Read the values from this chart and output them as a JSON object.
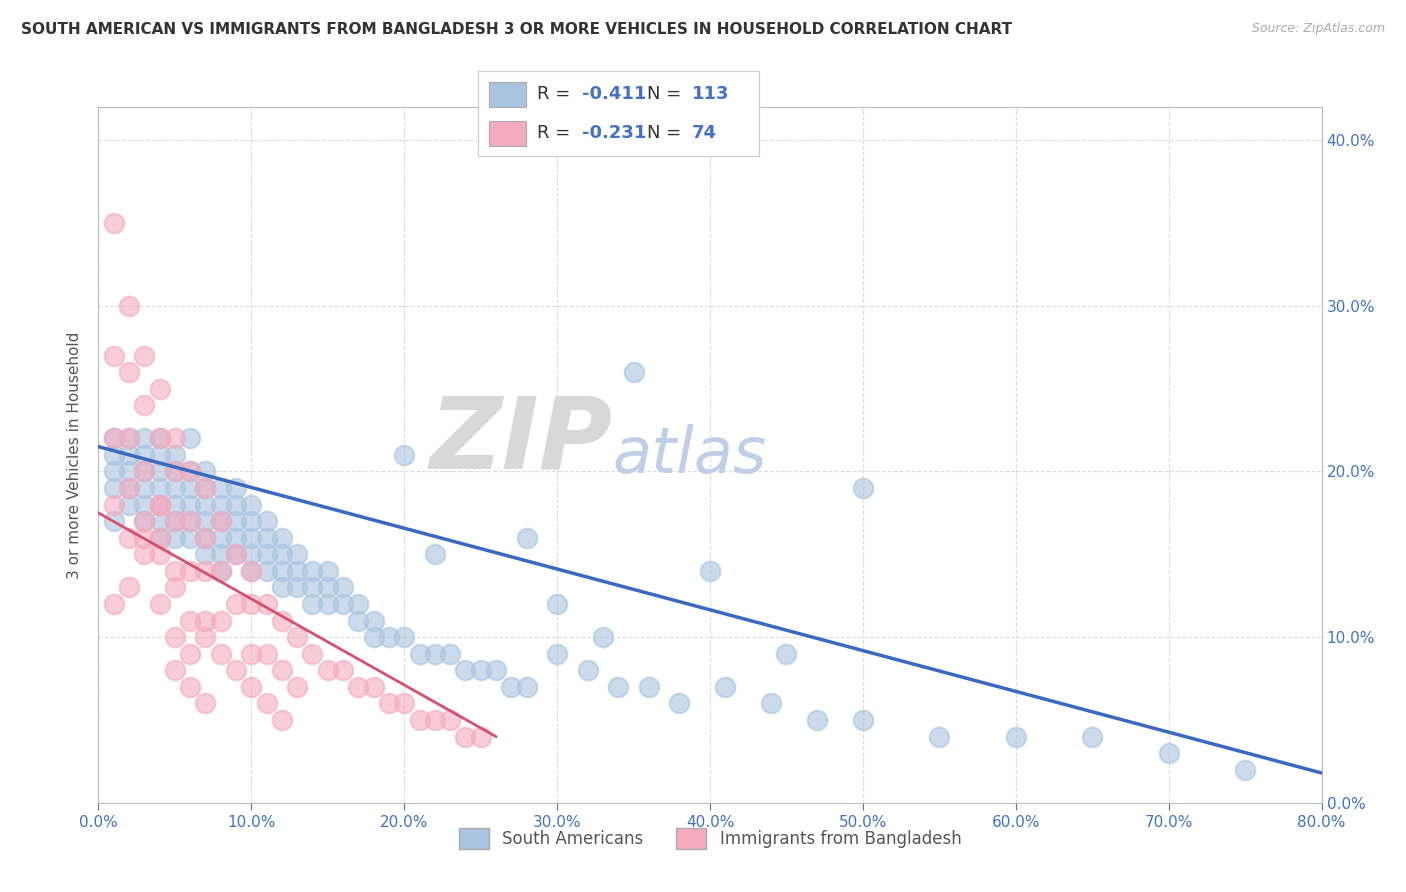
{
  "title": "SOUTH AMERICAN VS IMMIGRANTS FROM BANGLADESH 3 OR MORE VEHICLES IN HOUSEHOLD CORRELATION CHART",
  "source": "Source: ZipAtlas.com",
  "ylabel": "3 or more Vehicles in Household",
  "blue_R": -0.411,
  "blue_N": 113,
  "pink_R": -0.231,
  "pink_N": 74,
  "blue_color": "#aac4e0",
  "blue_line_color": "#3a6abf",
  "pink_color": "#f4abbe",
  "pink_line_color": "#d45070",
  "legend_label_blue": "South Americans",
  "legend_label_pink": "Immigrants from Bangladesh",
  "watermark_zip": "ZIP",
  "watermark_atlas": "atlas",
  "title_fontsize": 11,
  "source_fontsize": 9,
  "blue_scatter_x": [
    0.01,
    0.01,
    0.01,
    0.01,
    0.01,
    0.02,
    0.02,
    0.02,
    0.02,
    0.02,
    0.03,
    0.03,
    0.03,
    0.03,
    0.03,
    0.03,
    0.04,
    0.04,
    0.04,
    0.04,
    0.04,
    0.04,
    0.04,
    0.05,
    0.05,
    0.05,
    0.05,
    0.05,
    0.05,
    0.06,
    0.06,
    0.06,
    0.06,
    0.06,
    0.06,
    0.07,
    0.07,
    0.07,
    0.07,
    0.07,
    0.07,
    0.08,
    0.08,
    0.08,
    0.08,
    0.08,
    0.08,
    0.09,
    0.09,
    0.09,
    0.09,
    0.09,
    0.1,
    0.1,
    0.1,
    0.1,
    0.1,
    0.11,
    0.11,
    0.11,
    0.11,
    0.12,
    0.12,
    0.12,
    0.12,
    0.13,
    0.13,
    0.13,
    0.14,
    0.14,
    0.14,
    0.15,
    0.15,
    0.15,
    0.16,
    0.16,
    0.17,
    0.17,
    0.18,
    0.18,
    0.19,
    0.2,
    0.21,
    0.22,
    0.23,
    0.24,
    0.25,
    0.26,
    0.27,
    0.28,
    0.3,
    0.32,
    0.34,
    0.36,
    0.38,
    0.41,
    0.44,
    0.47,
    0.5,
    0.55,
    0.6,
    0.65,
    0.7,
    0.75,
    0.5,
    0.3,
    0.2,
    0.4,
    0.35,
    0.28,
    0.45,
    0.33,
    0.22
  ],
  "blue_scatter_y": [
    0.22,
    0.2,
    0.19,
    0.17,
    0.21,
    0.21,
    0.2,
    0.19,
    0.22,
    0.18,
    0.21,
    0.22,
    0.2,
    0.19,
    0.18,
    0.17,
    0.21,
    0.2,
    0.19,
    0.18,
    0.17,
    0.22,
    0.16,
    0.21,
    0.2,
    0.19,
    0.18,
    0.17,
    0.16,
    0.2,
    0.19,
    0.18,
    0.17,
    0.16,
    0.22,
    0.2,
    0.19,
    0.18,
    0.17,
    0.16,
    0.15,
    0.19,
    0.18,
    0.17,
    0.16,
    0.15,
    0.14,
    0.19,
    0.18,
    0.17,
    0.16,
    0.15,
    0.18,
    0.17,
    0.16,
    0.15,
    0.14,
    0.17,
    0.16,
    0.15,
    0.14,
    0.16,
    0.15,
    0.14,
    0.13,
    0.15,
    0.14,
    0.13,
    0.14,
    0.13,
    0.12,
    0.14,
    0.13,
    0.12,
    0.13,
    0.12,
    0.12,
    0.11,
    0.11,
    0.1,
    0.1,
    0.1,
    0.09,
    0.09,
    0.09,
    0.08,
    0.08,
    0.08,
    0.07,
    0.07,
    0.09,
    0.08,
    0.07,
    0.07,
    0.06,
    0.07,
    0.06,
    0.05,
    0.05,
    0.04,
    0.04,
    0.04,
    0.03,
    0.02,
    0.19,
    0.12,
    0.21,
    0.14,
    0.26,
    0.16,
    0.09,
    0.1,
    0.15
  ],
  "pink_scatter_x": [
    0.01,
    0.01,
    0.01,
    0.01,
    0.02,
    0.02,
    0.02,
    0.02,
    0.02,
    0.03,
    0.03,
    0.03,
    0.03,
    0.03,
    0.04,
    0.04,
    0.04,
    0.04,
    0.04,
    0.05,
    0.05,
    0.05,
    0.05,
    0.06,
    0.06,
    0.06,
    0.07,
    0.07,
    0.07,
    0.07,
    0.08,
    0.08,
    0.08,
    0.09,
    0.09,
    0.1,
    0.1,
    0.1,
    0.11,
    0.11,
    0.12,
    0.12,
    0.13,
    0.13,
    0.14,
    0.15,
    0.16,
    0.17,
    0.18,
    0.19,
    0.2,
    0.21,
    0.22,
    0.23,
    0.24,
    0.25,
    0.01,
    0.02,
    0.03,
    0.04,
    0.05,
    0.05,
    0.06,
    0.07,
    0.06,
    0.07,
    0.08,
    0.09,
    0.1,
    0.11,
    0.12,
    0.04,
    0.05,
    0.06
  ],
  "pink_scatter_y": [
    0.35,
    0.27,
    0.22,
    0.18,
    0.3,
    0.26,
    0.22,
    0.19,
    0.16,
    0.27,
    0.24,
    0.2,
    0.17,
    0.15,
    0.25,
    0.22,
    0.18,
    0.15,
    0.12,
    0.22,
    0.2,
    0.17,
    0.14,
    0.2,
    0.17,
    0.14,
    0.19,
    0.16,
    0.14,
    0.11,
    0.17,
    0.14,
    0.11,
    0.15,
    0.12,
    0.14,
    0.12,
    0.09,
    0.12,
    0.09,
    0.11,
    0.08,
    0.1,
    0.07,
    0.09,
    0.08,
    0.08,
    0.07,
    0.07,
    0.06,
    0.06,
    0.05,
    0.05,
    0.05,
    0.04,
    0.04,
    0.12,
    0.13,
    0.16,
    0.16,
    0.1,
    0.08,
    0.11,
    0.1,
    0.07,
    0.06,
    0.09,
    0.08,
    0.07,
    0.06,
    0.05,
    0.18,
    0.13,
    0.09
  ],
  "blue_line_x0": 0.0,
  "blue_line_x1": 0.8,
  "blue_line_y0": 0.215,
  "blue_line_y1": 0.018,
  "pink_line_x0": 0.0,
  "pink_line_x1": 0.26,
  "pink_line_y0": 0.175,
  "pink_line_y1": 0.04,
  "xlim": [
    0.0,
    0.8
  ],
  "ylim": [
    0.0,
    0.42
  ],
  "xticks": [
    0.0,
    0.1,
    0.2,
    0.3,
    0.4,
    0.5,
    0.6,
    0.7,
    0.8
  ],
  "yticks": [
    0.0,
    0.1,
    0.2,
    0.3,
    0.4
  ],
  "background_color": "#ffffff",
  "grid_color": "#dddddd"
}
